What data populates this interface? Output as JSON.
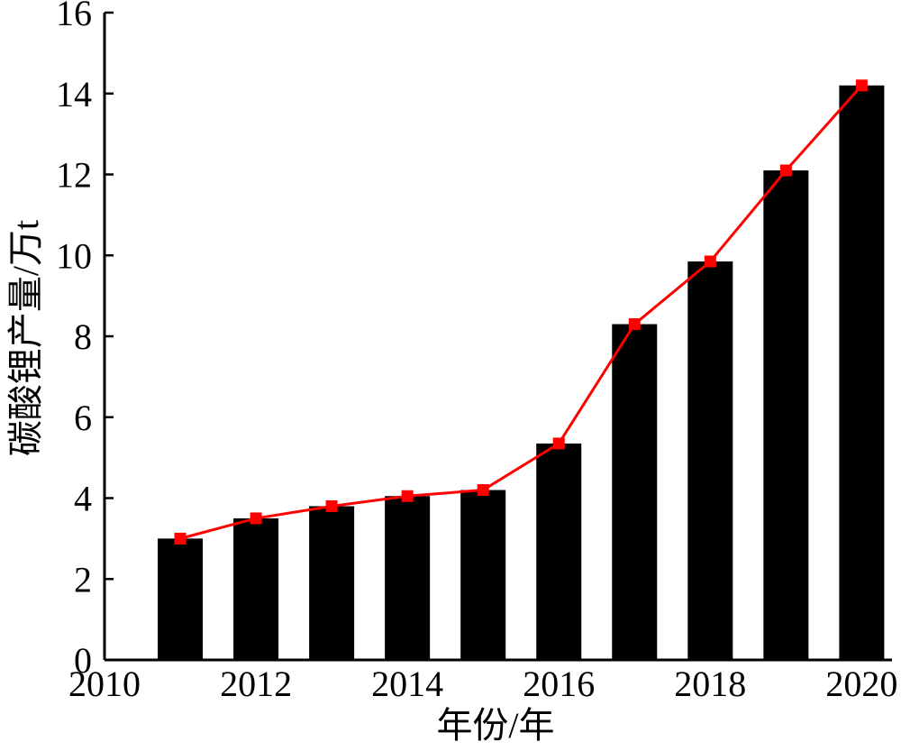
{
  "chart_data": {
    "type": "bar",
    "xlabel": "年份/年",
    "ylabel": "碳酸锂产量/万t",
    "xlim": [
      2010,
      2020.4
    ],
    "ylim": [
      0,
      16
    ],
    "x_ticks": [
      "2010",
      "2012",
      "2014",
      "2016",
      "2018",
      "2020"
    ],
    "y_ticks": [
      "0",
      "2",
      "4",
      "6",
      "8",
      "10",
      "12",
      "14",
      "16"
    ],
    "categories": [
      2011,
      2012,
      2013,
      2014,
      2015,
      2016,
      2017,
      2018,
      2019,
      2020
    ],
    "series": [
      {
        "type": "bar",
        "values": [
          3.0,
          3.5,
          3.8,
          4.05,
          4.2,
          5.35,
          8.3,
          9.85,
          12.1,
          14.2
        ],
        "color": "#000000"
      },
      {
        "type": "line",
        "values": [
          3.0,
          3.5,
          3.8,
          4.05,
          4.2,
          5.35,
          8.3,
          9.85,
          12.1,
          14.2
        ],
        "color": "#ff0000",
        "marker": "square"
      }
    ],
    "grid": false,
    "legend": "none"
  }
}
